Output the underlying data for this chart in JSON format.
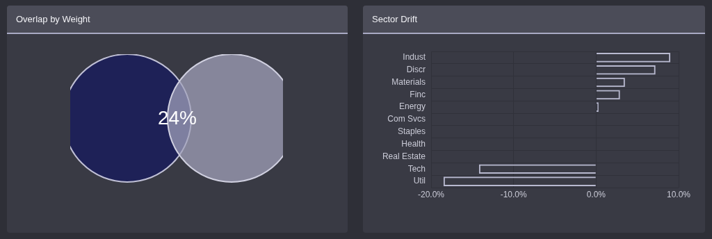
{
  "chart_data": [
    {
      "type": "other",
      "title": "Overlap by Weight",
      "annotations": [
        "24%"
      ]
    },
    {
      "type": "bar",
      "title": "Sector Drift",
      "orientation": "horizontal",
      "categories": [
        "Indust",
        "Discr",
        "Materials",
        "Finc",
        "Energy",
        "Com Svcs",
        "Staples",
        "Health",
        "Real Estate",
        "Tech",
        "Util"
      ],
      "values": [
        9.0,
        7.2,
        3.5,
        2.9,
        0.3,
        0,
        0,
        0,
        0,
        -14.2,
        -18.5
      ],
      "color": "#b8b9cf",
      "xlim": [
        -20,
        10
      ],
      "xticks": [
        {
          "value": -20,
          "label": "-20.0%"
        },
        {
          "value": -10,
          "label": "-10.0%"
        },
        {
          "value": 0,
          "label": "0.0%"
        },
        {
          "value": 10,
          "label": "10.0%"
        }
      ],
      "grid": true
    }
  ]
}
